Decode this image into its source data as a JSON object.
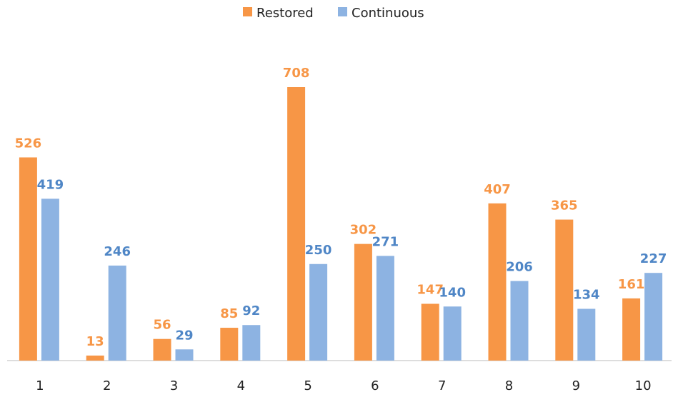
{
  "chart_data": {
    "type": "bar",
    "categories": [
      "1",
      "2",
      "3",
      "4",
      "5",
      "6",
      "7",
      "8",
      "9",
      "10"
    ],
    "series": [
      {
        "name": "Restored",
        "color": "#f79646",
        "values": [
          526,
          13,
          56,
          85,
          708,
          302,
          147,
          407,
          365,
          161
        ]
      },
      {
        "name": "Continuous",
        "color": "#8db3e2",
        "values": [
          419,
          246,
          29,
          92,
          250,
          271,
          140,
          206,
          134,
          227
        ]
      }
    ],
    "legend": "top"
  }
}
